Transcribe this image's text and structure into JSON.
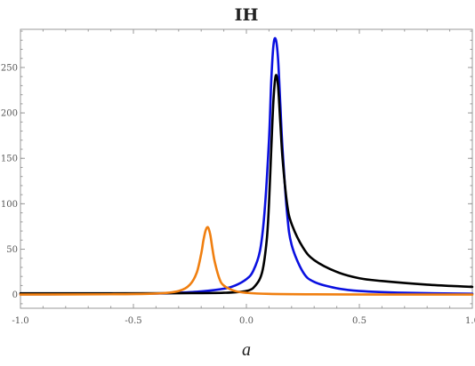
{
  "chart_data": {
    "type": "line",
    "title": "IH",
    "xlabel": "a",
    "ylabel": "",
    "xlim": [
      -1.0,
      1.0
    ],
    "ylim": [
      -15,
      292
    ],
    "grid": false,
    "legend": "none",
    "x_ticks": [
      "-1.0",
      "-0.5",
      "0.0",
      "0.5",
      "1.0"
    ],
    "y_ticks": [
      "0",
      "50",
      "100",
      "150",
      "200",
      "250"
    ],
    "series": [
      {
        "color": "#0a10e0",
        "x": [
          -1.0,
          -0.8,
          -0.6,
          -0.4,
          -0.3,
          -0.2,
          -0.1,
          -0.05,
          0.0,
          0.03,
          0.06,
          0.08,
          0.1,
          0.11,
          0.12,
          0.13,
          0.14,
          0.15,
          0.16,
          0.18,
          0.2,
          0.25,
          0.3,
          0.4,
          0.5,
          0.7,
          1.0
        ],
        "y": [
          0.3,
          0.4,
          0.7,
          1.2,
          2.0,
          3.5,
          6.5,
          10,
          17,
          26,
          48,
          90,
          170,
          235,
          275,
          281,
          260,
          210,
          160,
          90,
          55,
          25,
          14,
          7,
          4,
          2.0,
          1.0
        ]
      },
      {
        "color": "#000000",
        "x": [
          -1.0,
          -0.6,
          -0.3,
          -0.1,
          0.0,
          0.04,
          0.07,
          0.09,
          0.1,
          0.11,
          0.12,
          0.13,
          0.14,
          0.15,
          0.16,
          0.18,
          0.2,
          0.25,
          0.3,
          0.4,
          0.5,
          0.6,
          0.8,
          1.0
        ],
        "y": [
          1.5,
          1.5,
          1.6,
          2.0,
          4,
          10,
          25,
          60,
          100,
          160,
          215,
          241,
          230,
          190,
          150,
          100,
          78,
          52,
          38,
          25,
          18,
          15,
          11,
          8.5
        ]
      },
      {
        "color": "#f07f10",
        "x": [
          -1.0,
          -0.6,
          -0.4,
          -0.3,
          -0.25,
          -0.22,
          -0.2,
          -0.19,
          -0.18,
          -0.17,
          -0.16,
          -0.15,
          -0.14,
          -0.12,
          -0.1,
          -0.05,
          0.0,
          0.1,
          0.3,
          0.6,
          1.0
        ],
        "y": [
          0.1,
          0.4,
          1.2,
          4,
          11,
          24,
          45,
          60,
          71,
          74,
          66,
          50,
          36,
          18,
          10,
          4,
          2,
          0.8,
          0.3,
          0.1,
          0.05
        ]
      }
    ]
  }
}
